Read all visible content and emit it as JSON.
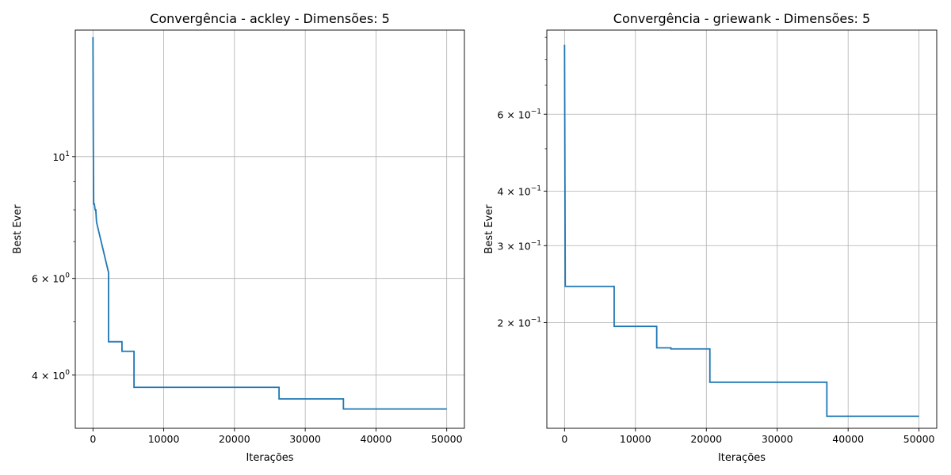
{
  "chart_data": [
    {
      "type": "line",
      "title": "Convergência - ackley - Dimensões: 5",
      "xlabel": "Iterações",
      "ylabel": "Best Ever",
      "yscale": "log",
      "grid": true,
      "xlim": [
        -2500,
        52500
      ],
      "ylim": [
        3.2,
        17.0
      ],
      "xticks": [
        {
          "value": 0,
          "label": "0"
        },
        {
          "value": 10000,
          "label": "10000"
        },
        {
          "value": 20000,
          "label": "20000"
        },
        {
          "value": 30000,
          "label": "30000"
        },
        {
          "value": 40000,
          "label": "40000"
        },
        {
          "value": 50000,
          "label": "50000"
        }
      ],
      "yticks_major": [
        {
          "value": 10,
          "base": "10",
          "exp": "1"
        },
        {
          "value": 6,
          "base": "6 × 10",
          "exp": "0"
        },
        {
          "value": 4,
          "base": "4 × 10",
          "exp": "0"
        }
      ],
      "yticks_minor": [
        7,
        8,
        9,
        5
      ],
      "series": [
        {
          "color": "#1f77b4",
          "x": [
            0,
            10,
            30,
            60,
            100,
            200,
            300,
            400,
            500,
            2200,
            2200,
            4100,
            4100,
            5800,
            5800,
            26300,
            26300,
            35400,
            35400,
            50000
          ],
          "y": [
            16.5,
            15.0,
            12.0,
            10.0,
            8.2,
            8.2,
            8.0,
            8.0,
            7.6,
            6.15,
            4.6,
            4.6,
            4.42,
            4.42,
            3.8,
            3.8,
            3.62,
            3.62,
            3.47,
            3.47
          ],
          "step": [
            true,
            true,
            true,
            true,
            true,
            true,
            true,
            true,
            true,
            false,
            true,
            false,
            true,
            false,
            true,
            false,
            true,
            false,
            true,
            false
          ]
        }
      ]
    },
    {
      "type": "line",
      "title": "Convergência - griewank - Dimensões: 5",
      "xlabel": "Iterações",
      "ylabel": "Best Ever",
      "yscale": "log",
      "grid": true,
      "xlim": [
        -2500,
        52500
      ],
      "ylim": [
        0.1145,
        0.935
      ],
      "xticks": [
        {
          "value": 0,
          "label": "0"
        },
        {
          "value": 10000,
          "label": "10000"
        },
        {
          "value": 20000,
          "label": "20000"
        },
        {
          "value": 30000,
          "label": "30000"
        },
        {
          "value": 40000,
          "label": "40000"
        },
        {
          "value": 50000,
          "label": "50000"
        }
      ],
      "yticks_major": [
        {
          "value": 0.6,
          "base": "6 × 10",
          "exp": "−1"
        },
        {
          "value": 0.4,
          "base": "4 × 10",
          "exp": "−1"
        },
        {
          "value": 0.3,
          "base": "3 × 10",
          "exp": "−1"
        },
        {
          "value": 0.2,
          "base": "2 × 10",
          "exp": "−1"
        }
      ],
      "yticks_minor": [
        0.7,
        0.8,
        0.9,
        0.5
      ],
      "series": [
        {
          "color": "#1f77b4",
          "x": [
            0,
            100,
            7000,
            7000,
            13000,
            13000,
            15000,
            15000,
            20500,
            20500,
            37000,
            37000,
            50000
          ],
          "y": [
            0.865,
            0.242,
            0.242,
            0.196,
            0.196,
            0.175,
            0.175,
            0.174,
            0.174,
            0.146,
            0.146,
            0.122,
            0.122
          ]
        }
      ]
    }
  ]
}
